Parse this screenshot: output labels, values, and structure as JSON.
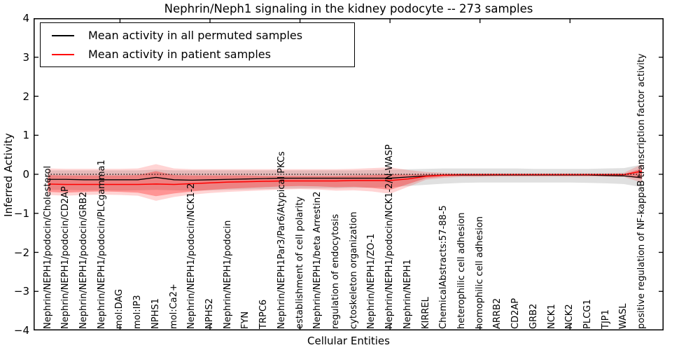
{
  "figure": {
    "title": "Nephrin/Neph1 signaling in the kidney podocyte -- 273 samples",
    "xlabel": "Cellular Entities",
    "ylabel": "Inferred Activity",
    "legend": {
      "entries": [
        {
          "label": "Mean activity in all permuted samples",
          "color": "#000000"
        },
        {
          "label": "Mean activity in patient samples",
          "color": "#ff0000"
        }
      ]
    }
  },
  "chart_data": {
    "type": "line",
    "title": "Nephrin/Neph1 signaling in the kidney podocyte -- 273 samples",
    "xlabel": "Cellular Entities",
    "ylabel": "Inferred Activity",
    "xlim": [
      0.2,
      35.2
    ],
    "ylim": [
      -4,
      4
    ],
    "yticks": [
      4,
      3,
      2,
      1,
      0,
      -1,
      -2,
      -3,
      -4
    ],
    "ytick_labels": [
      "4",
      "3",
      "2",
      "1",
      "0",
      "−1",
      "−2",
      "−3",
      "−4"
    ],
    "xticks": [
      5,
      10,
      15,
      20,
      25,
      30
    ],
    "grid": false,
    "legend_position": "upper left",
    "zero_line": {
      "y": 0,
      "style": "dotted",
      "color": "#000000"
    },
    "categories": [
      "Nephrin/NEPH1/podocin/Cholesterol",
      "Nephrin/NEPH1/podocin/CD2AP",
      "Nephrin/NEPH1/podocin/GRB2",
      "Nephrin/NEPH1/podocin/PLCgamma1",
      "mol:DAG",
      "mol:IP3",
      "NPHS1",
      "mol:Ca2+",
      "Nephrin/NEPH1/podocin/NCK1-2",
      "NPHS2",
      "Nephrin/NEPH1/podocin",
      "FYN",
      "TRPC6",
      "Nephrin/NEPH1Par3/Par6/Atypical PKCs",
      "establishment of cell polarity",
      "Nephrin/NEPH1/beta Arrestin2",
      "regulation of endocytosis",
      "cytoskeleton organization",
      "Nephrin/NEPH1/ZO-1",
      "Nephrin/NEPH1/podocin/NCK1-2/N-WASP",
      "Nephrin/NEPH1",
      "KIRREL",
      "ChemicalAbstracts:57-88-5",
      "heterophilic cell adhesion",
      "homophilic cell adhesion",
      "ARRB2",
      "CD2AP",
      "GRB2",
      "NCK1",
      "NCK2",
      "PLCG1",
      "TJP1",
      "WASL",
      "positive regulation of NF-kappaB transcription factor activity"
    ],
    "series": [
      {
        "name": "Mean activity in all permuted samples",
        "type": "line",
        "color": "#000000",
        "values": [
          -0.13,
          -0.13,
          -0.14,
          -0.14,
          -0.14,
          -0.14,
          -0.08,
          -0.14,
          -0.15,
          -0.14,
          -0.13,
          -0.12,
          -0.11,
          -0.1,
          -0.1,
          -0.1,
          -0.1,
          -0.1,
          -0.1,
          -0.1,
          -0.07,
          -0.04,
          -0.02,
          -0.02,
          -0.02,
          -0.02,
          -0.02,
          -0.02,
          -0.02,
          -0.02,
          -0.02,
          -0.03,
          -0.04,
          -0.09
        ]
      },
      {
        "name": "Mean activity in patient samples",
        "type": "line",
        "color": "#ff0000",
        "values": [
          -0.25,
          -0.26,
          -0.26,
          -0.26,
          -0.26,
          -0.26,
          -0.25,
          -0.26,
          -0.24,
          -0.22,
          -0.2,
          -0.19,
          -0.18,
          -0.17,
          -0.17,
          -0.17,
          -0.17,
          -0.16,
          -0.16,
          -0.16,
          -0.12,
          -0.05,
          -0.02,
          -0.01,
          -0.01,
          -0.01,
          -0.01,
          -0.01,
          -0.01,
          -0.01,
          -0.01,
          -0.01,
          -0.01,
          0.08
        ]
      },
      {
        "name": "Permuted samples envelope",
        "type": "band",
        "color": "rgba(0,0,0,0.12)",
        "upper": [
          0.1,
          0.1,
          0.1,
          0.1,
          0.1,
          0.1,
          0.12,
          0.1,
          0.1,
          0.1,
          0.1,
          0.1,
          0.1,
          0.1,
          0.1,
          0.1,
          0.1,
          0.1,
          0.11,
          0.12,
          0.13,
          0.14,
          0.15,
          0.15,
          0.15,
          0.15,
          0.15,
          0.14,
          0.14,
          0.14,
          0.14,
          0.15,
          0.16,
          0.25
        ],
        "lower": [
          -0.4,
          -0.4,
          -0.41,
          -0.41,
          -0.42,
          -0.41,
          -0.4,
          -0.41,
          -0.42,
          -0.41,
          -0.4,
          -0.39,
          -0.38,
          -0.37,
          -0.36,
          -0.36,
          -0.36,
          -0.35,
          -0.34,
          -0.33,
          -0.3,
          -0.27,
          -0.24,
          -0.22,
          -0.21,
          -0.21,
          -0.21,
          -0.21,
          -0.21,
          -0.21,
          -0.22,
          -0.23,
          -0.25,
          -0.33
        ]
      },
      {
        "name": "Patient samples envelope (outer)",
        "type": "band",
        "color": "rgba(255,0,0,0.17)",
        "upper": [
          0.15,
          0.14,
          0.14,
          0.14,
          0.14,
          0.15,
          0.26,
          0.15,
          0.13,
          0.13,
          0.13,
          0.13,
          0.13,
          0.13,
          0.13,
          0.13,
          0.13,
          0.14,
          0.16,
          0.18,
          0.11,
          0.06,
          0.04,
          0.03,
          0.03,
          0.03,
          0.03,
          0.03,
          0.03,
          0.03,
          0.03,
          0.03,
          0.04,
          0.26
        ],
        "lower": [
          -0.53,
          -0.55,
          -0.53,
          -0.52,
          -0.53,
          -0.55,
          -0.68,
          -0.58,
          -0.52,
          -0.48,
          -0.45,
          -0.43,
          -0.41,
          -0.39,
          -0.38,
          -0.39,
          -0.42,
          -0.41,
          -0.44,
          -0.5,
          -0.32,
          -0.14,
          -0.09,
          -0.07,
          -0.07,
          -0.06,
          -0.06,
          -0.06,
          -0.06,
          -0.06,
          -0.06,
          -0.06,
          -0.07,
          -0.21
        ]
      },
      {
        "name": "Patient samples envelope (inner)",
        "type": "band",
        "color": "rgba(255,0,0,0.30)",
        "upper": [
          -0.02,
          -0.03,
          -0.03,
          -0.03,
          -0.03,
          -0.02,
          0.08,
          -0.02,
          -0.03,
          -0.03,
          -0.03,
          -0.03,
          -0.04,
          -0.04,
          -0.04,
          -0.04,
          -0.04,
          -0.03,
          -0.02,
          0.0,
          -0.01,
          0.0,
          0.0,
          0.0,
          0.0,
          0.0,
          0.0,
          0.0,
          0.0,
          0.0,
          0.0,
          0.0,
          0.01,
          0.15
        ],
        "lower": [
          -0.45,
          -0.47,
          -0.45,
          -0.44,
          -0.45,
          -0.47,
          -0.56,
          -0.49,
          -0.44,
          -0.4,
          -0.37,
          -0.35,
          -0.33,
          -0.31,
          -0.3,
          -0.31,
          -0.33,
          -0.32,
          -0.35,
          -0.4,
          -0.25,
          -0.1,
          -0.06,
          -0.04,
          -0.04,
          -0.03,
          -0.03,
          -0.03,
          -0.03,
          -0.03,
          -0.03,
          -0.03,
          -0.04,
          -0.12
        ]
      }
    ]
  }
}
